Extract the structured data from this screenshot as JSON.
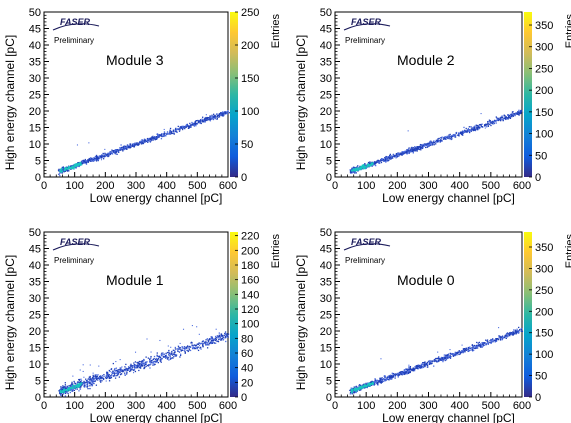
{
  "colors": {
    "axis": "#000000",
    "point_dark": "#1f3fb8",
    "point_light": "#4f6fe0",
    "ridge": "#19c5c0",
    "logo_text": "#1a1a5a"
  },
  "palette": [
    "#352a87",
    "#0f5cdd",
    "#1481d6",
    "#06a4ca",
    "#2eb7a4",
    "#87bf77",
    "#d1bb59",
    "#fec832",
    "#f9fb0e"
  ],
  "logo_text": "FASER",
  "chart_data": [
    {
      "type": "heatmap",
      "title": "Module 3",
      "logo_subtitle": "Preliminary",
      "xlabel": "Low energy channel [pC]",
      "ylabel": "High energy channel [pC]",
      "zlabel": "Entries",
      "xlim": [
        0,
        600
      ],
      "ylim": [
        0,
        50
      ],
      "zlim": [
        0,
        250
      ],
      "xticks": [
        0,
        100,
        200,
        300,
        400,
        500,
        600
      ],
      "yticks": [
        0,
        5,
        10,
        15,
        20,
        25,
        30,
        35,
        40,
        45,
        50
      ],
      "zticks": [
        0,
        50,
        100,
        150,
        200,
        250
      ],
      "trend": {
        "x": [
          50,
          600
        ],
        "y": [
          2.0,
          20.0
        ]
      },
      "band_halfwidth": 0.8,
      "outliers": 6
    },
    {
      "type": "heatmap",
      "title": "Module 2",
      "logo_subtitle": "Preliminary",
      "xlabel": "Low energy channel [pC]",
      "ylabel": "High energy channel [pC]",
      "zlabel": "Entries",
      "xlim": [
        0,
        600
      ],
      "ylim": [
        0,
        50
      ],
      "zlim": [
        0,
        380
      ],
      "xticks": [
        0,
        100,
        200,
        300,
        400,
        500,
        600
      ],
      "yticks": [
        0,
        5,
        10,
        15,
        20,
        25,
        30,
        35,
        40,
        45,
        50
      ],
      "zticks": [
        0,
        50,
        100,
        150,
        200,
        250,
        300,
        350
      ],
      "trend": {
        "x": [
          50,
          600
        ],
        "y": [
          2.0,
          20.0
        ]
      },
      "band_halfwidth": 0.8,
      "outliers": 5
    },
    {
      "type": "heatmap",
      "title": "Module 1",
      "logo_subtitle": "Preliminary",
      "xlabel": "Low energy channel [pC]",
      "ylabel": "High energy channel [pC]",
      "zlabel": "Entries",
      "xlim": [
        0,
        600
      ],
      "ylim": [
        0,
        50
      ],
      "zlim": [
        0,
        225
      ],
      "xticks": [
        0,
        100,
        200,
        300,
        400,
        500,
        600
      ],
      "yticks": [
        0,
        5,
        10,
        15,
        20,
        25,
        30,
        35,
        40,
        45,
        50
      ],
      "zticks": [
        0,
        20,
        40,
        60,
        80,
        100,
        120,
        140,
        160,
        180,
        200,
        220
      ],
      "trend": {
        "x": [
          50,
          600
        ],
        "y": [
          1.8,
          19.0
        ]
      },
      "band_halfwidth": 1.6,
      "outliers": 40
    },
    {
      "type": "heatmap",
      "title": "Module 0",
      "logo_subtitle": "Preliminary",
      "xlabel": "Low energy channel [pC]",
      "ylabel": "High energy channel [pC]",
      "zlabel": "Entries",
      "xlim": [
        0,
        600
      ],
      "ylim": [
        0,
        50
      ],
      "zlim": [
        0,
        385
      ],
      "xticks": [
        0,
        100,
        200,
        300,
        400,
        500,
        600
      ],
      "yticks": [
        0,
        5,
        10,
        15,
        20,
        25,
        30,
        35,
        40,
        45,
        50
      ],
      "zticks": [
        0,
        50,
        100,
        150,
        200,
        250,
        300,
        350
      ],
      "trend": {
        "x": [
          50,
          600
        ],
        "y": [
          2.0,
          20.5
        ]
      },
      "band_halfwidth": 0.9,
      "outliers": 6
    }
  ]
}
